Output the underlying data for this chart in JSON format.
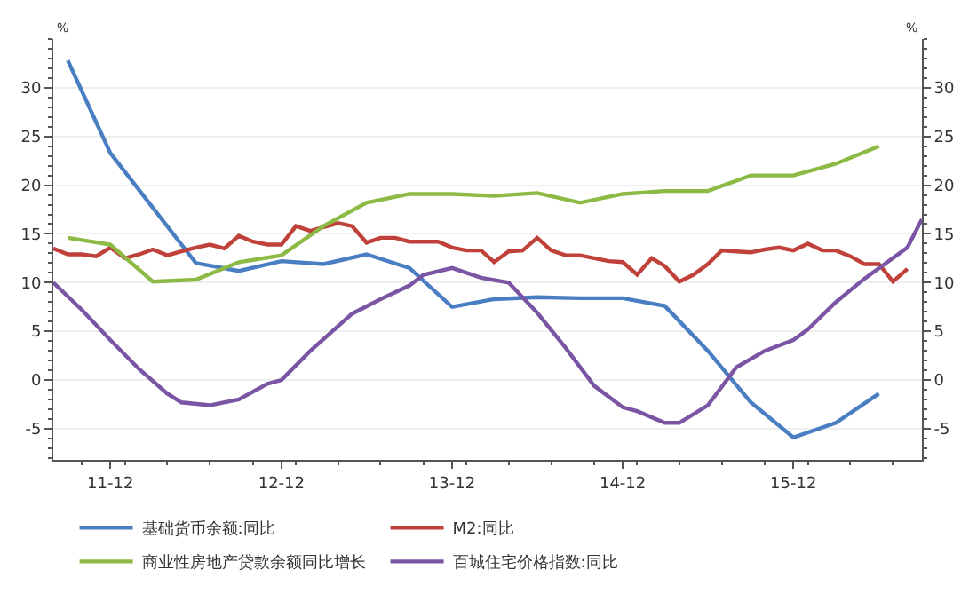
{
  "chart_data": {
    "type": "line",
    "ylabel": "%",
    "y2label": "%",
    "xlim": [
      "2011-08",
      "2016-09"
    ],
    "xticks": [
      {
        "value": "2011-12",
        "label": "11-12"
      },
      {
        "value": "2012-12",
        "label": "12-12"
      },
      {
        "value": "2013-12",
        "label": "13-12"
      },
      {
        "value": "2014-12",
        "label": "14-12"
      },
      {
        "value": "2015-12",
        "label": "15-12"
      }
    ],
    "ylim": [
      -8.2,
      35
    ],
    "yticks": [
      -5,
      0,
      5,
      10,
      15,
      20,
      25,
      30
    ],
    "y2lim": [
      -8.2,
      35
    ],
    "y2ticks": [
      -5,
      0,
      5,
      10,
      15,
      20,
      25,
      30
    ],
    "grid": "y",
    "legend": "bottom",
    "marker": "none",
    "line_style": "solid",
    "series": [
      {
        "name": "基础货币余额:同比",
        "color": "#4a7ec2",
        "x": [
          "2011-09",
          "2011-12",
          "2012-06",
          "2012-09",
          "2012-12",
          "2013-03",
          "2013-06",
          "2013-09",
          "2013-12",
          "2014-03",
          "2014-06",
          "2014-09",
          "2014-12",
          "2015-03",
          "2015-06",
          "2015-09",
          "2015-12",
          "2016-03",
          "2016-06"
        ],
        "values": [
          32.8,
          23.3,
          12.0,
          11.2,
          12.2,
          11.9,
          12.9,
          11.5,
          7.5,
          8.3,
          8.5,
          8.4,
          8.4,
          7.6,
          3.0,
          -2.3,
          -5.9,
          -4.4,
          -1.4
        ]
      },
      {
        "name": "M2:同比",
        "color": "#c0403a",
        "x": [
          "2011-08",
          "2011-09",
          "2011-10",
          "2011-11",
          "2011-12",
          "2012-01",
          "2012-02",
          "2012-03",
          "2012-04",
          "2012-05",
          "2012-06",
          "2012-07",
          "2012-08",
          "2012-09",
          "2012-10",
          "2012-11",
          "2012-12",
          "2013-01",
          "2013-02",
          "2013-03",
          "2013-04",
          "2013-05",
          "2013-06",
          "2013-07",
          "2013-08",
          "2013-09",
          "2013-10",
          "2013-11",
          "2013-12",
          "2014-01",
          "2014-02",
          "2014-03",
          "2014-04",
          "2014-05",
          "2014-06",
          "2014-07",
          "2014-08",
          "2014-09",
          "2014-10",
          "2014-11",
          "2014-12",
          "2015-01",
          "2015-02",
          "2015-03",
          "2015-04",
          "2015-05",
          "2015-06",
          "2015-07",
          "2015-08",
          "2015-09",
          "2015-10",
          "2015-11",
          "2015-12",
          "2016-01",
          "2016-02",
          "2016-03",
          "2016-04",
          "2016-05",
          "2016-06",
          "2016-07",
          "2016-08"
        ],
        "values": [
          13.5,
          12.9,
          12.9,
          12.7,
          13.6,
          12.5,
          12.9,
          13.4,
          12.8,
          13.2,
          13.6,
          13.9,
          13.5,
          14.8,
          14.2,
          13.9,
          13.9,
          15.8,
          15.3,
          15.7,
          16.1,
          15.8,
          14.1,
          14.6,
          14.6,
          14.2,
          14.2,
          14.2,
          13.6,
          13.3,
          13.3,
          12.1,
          13.2,
          13.3,
          14.6,
          13.3,
          12.8,
          12.8,
          12.5,
          12.2,
          12.1,
          10.8,
          12.5,
          11.7,
          10.1,
          10.8,
          11.9,
          13.3,
          13.2,
          13.1,
          13.4,
          13.6,
          13.3,
          14.0,
          13.3,
          13.3,
          12.7,
          11.9,
          11.9,
          10.1,
          11.4
        ]
      },
      {
        "name": "商业性房地产贷款余额同比增长",
        "color": "#8dba45",
        "x": [
          "2011-09",
          "2011-12",
          "2012-03",
          "2012-06",
          "2012-09",
          "2012-12",
          "2013-03",
          "2013-06",
          "2013-09",
          "2013-12",
          "2014-03",
          "2014-06",
          "2014-09",
          "2014-12",
          "2015-03",
          "2015-06",
          "2015-09",
          "2015-12",
          "2016-03",
          "2016-06"
        ],
        "values": [
          14.6,
          13.9,
          10.1,
          10.3,
          12.1,
          12.8,
          15.8,
          18.2,
          19.1,
          19.1,
          18.9,
          19.2,
          18.2,
          19.1,
          19.4,
          19.4,
          21.0,
          21.0,
          22.2,
          24.0
        ]
      },
      {
        "name": "百城住宅价格指数:同比",
        "color": "#7a55a4",
        "x": [
          "2011-08",
          "2011-10",
          "2011-12",
          "2012-02",
          "2012-04",
          "2012-05",
          "2012-07",
          "2012-09",
          "2012-11",
          "2012-12",
          "2013-02",
          "2013-05",
          "2013-07",
          "2013-09",
          "2013-10",
          "2013-12",
          "2014-02",
          "2014-04",
          "2014-06",
          "2014-08",
          "2014-10",
          "2014-12",
          "2015-01",
          "2015-03",
          "2015-04",
          "2015-06",
          "2015-08",
          "2015-10",
          "2015-12",
          "2016-01",
          "2016-03",
          "2016-05",
          "2016-08",
          "2016-09"
        ],
        "values": [
          10.0,
          7.2,
          4.1,
          1.1,
          -1.4,
          -2.3,
          -2.6,
          -2.0,
          -0.4,
          0.0,
          3.0,
          6.8,
          8.3,
          9.7,
          10.8,
          11.5,
          10.5,
          10.0,
          6.9,
          3.3,
          -0.6,
          -2.8,
          -3.2,
          -4.4,
          -4.4,
          -2.6,
          1.3,
          3.0,
          4.1,
          5.2,
          8.0,
          10.4,
          13.6,
          16.5
        ]
      }
    ]
  }
}
